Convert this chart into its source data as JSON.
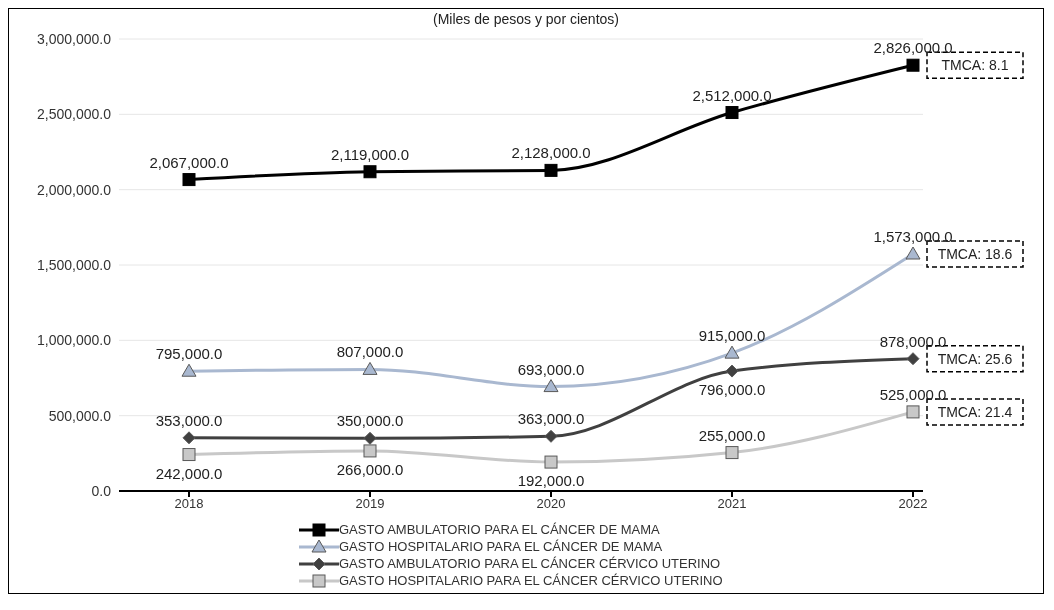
{
  "chart_data": {
    "type": "line",
    "subtitle": "(Miles de pesos y por cientos)",
    "categories": [
      "2018",
      "2019",
      "2020",
      "2021",
      "2022"
    ],
    "series": [
      {
        "name": "GASTO AMBULATORIO PARA EL CÁNCER DE MAMA",
        "color": "#000000",
        "marker": "square",
        "values": [
          2067000,
          2119000,
          2128000,
          2512000,
          2826000
        ],
        "value_labels": [
          "2,067,000.0",
          "2,119,000.0",
          "2,128,000.0",
          "2,512,000.0",
          "2,826,000.0"
        ]
      },
      {
        "name": "GASTO HOSPITALARIO PARA EL CÁNCER DE MAMA",
        "color": "#a9b8d0",
        "marker": "triangle",
        "values": [
          795000,
          807000,
          693000,
          915000,
          1573000
        ],
        "value_labels": [
          "795,000.0",
          "807,000.0",
          "693,000.0",
          "915,000.0",
          "1,573,000.0"
        ]
      },
      {
        "name": "GASTO AMBULATORIO PARA EL CÁNCER CÉRVICO UTERINO",
        "color": "#404040",
        "marker": "diamond",
        "values": [
          353000,
          350000,
          363000,
          796000,
          878000
        ],
        "value_labels": [
          "353,000.0",
          "350,000.0",
          "363,000.0",
          "796,000.0",
          "878,000.0"
        ]
      },
      {
        "name": "GASTO HOSPITALARIO PARA EL CÁNCER CÉRVICO UTERINO",
        "color": "#c8c8c8",
        "marker": "square",
        "values": [
          242000,
          266000,
          192000,
          255000,
          525000
        ],
        "value_labels": [
          "242,000.0",
          "266,000.0",
          "192,000.0",
          "255,000.0",
          "525,000.0"
        ]
      }
    ],
    "ylim": [
      0,
      3000000
    ],
    "yticks": [
      {
        "value": 0,
        "label": "0.0"
      },
      {
        "value": 500000,
        "label": "500,000.0"
      },
      {
        "value": 1000000,
        "label": "1,000,000.0"
      },
      {
        "value": 1500000,
        "label": "1,500,000.0"
      },
      {
        "value": 2000000,
        "label": "2,000,000.0"
      },
      {
        "value": 2500000,
        "label": "2,500,000.0"
      },
      {
        "value": 3000000,
        "label": "3,000,000.0"
      }
    ],
    "grid": "y",
    "legend": "bottom",
    "line_style": "solid",
    "annotations": [
      {
        "text": "TMCA: 8.1",
        "x": "2022",
        "y": 2826000
      },
      {
        "text": "TMCA: 18.6",
        "x": "2022",
        "y": 1573000
      },
      {
        "text": "TMCA: 25.6",
        "x": "2022",
        "y": 878000
      },
      {
        "text": "TMCA: 21.4",
        "x": "2022",
        "y": 525000
      }
    ]
  }
}
